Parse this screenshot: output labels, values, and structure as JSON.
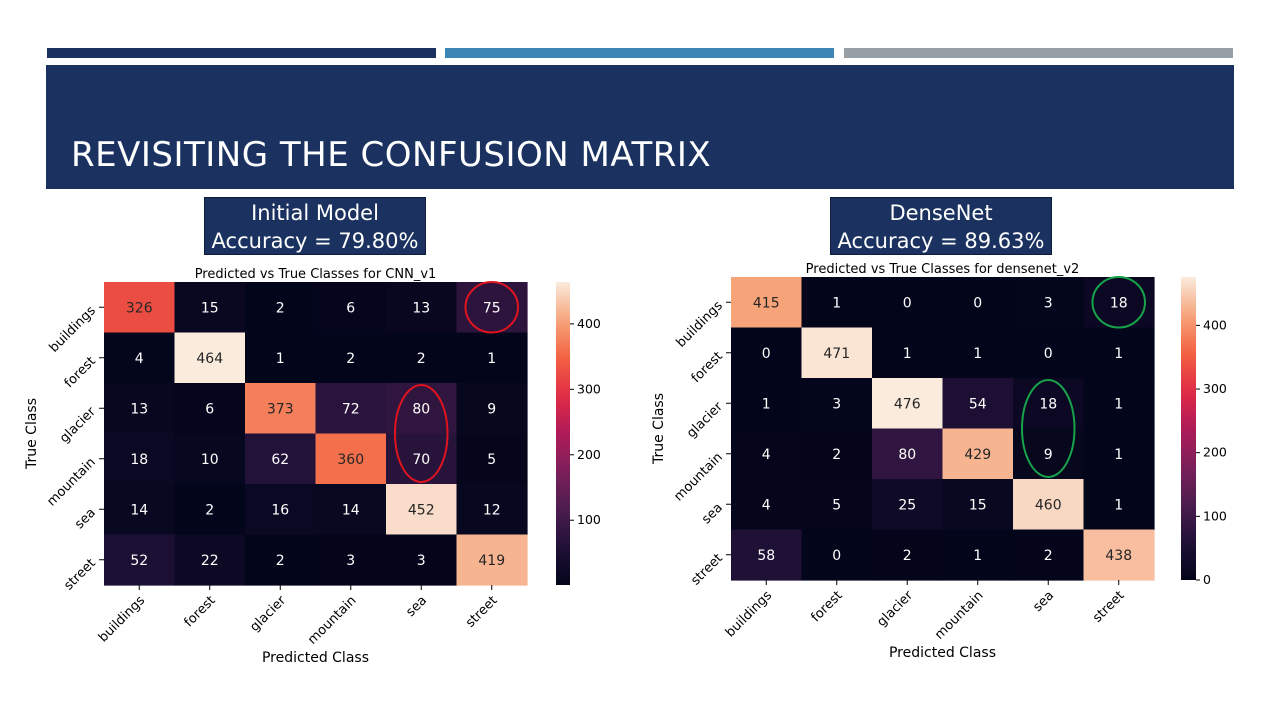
{
  "slide": {
    "title": "REVISITING THE CONFUSION MATRIX",
    "bar_colors": [
      "#1b3260",
      "#3c86b5",
      "#969ea6"
    ]
  },
  "models": [
    {
      "name": "Initial Model",
      "accuracy": "Accuracy = 79.80%"
    },
    {
      "name": "DenseNet",
      "accuracy": "Accuracy = 89.63%"
    }
  ],
  "chart_data": [
    {
      "type": "heatmap",
      "title": "Predicted vs True Classes for CNN_v1",
      "xlabel": "Predicted Class",
      "ylabel": "True Class",
      "x_categories": [
        "buildings",
        "forest",
        "glacier",
        "mountain",
        "sea",
        "street"
      ],
      "y_categories": [
        "buildings",
        "forest",
        "glacier",
        "mountain",
        "sea",
        "street"
      ],
      "values": [
        [
          326,
          15,
          2,
          6,
          13,
          75
        ],
        [
          4,
          464,
          1,
          2,
          2,
          1
        ],
        [
          13,
          6,
          373,
          72,
          80,
          9
        ],
        [
          18,
          10,
          62,
          360,
          70,
          5
        ],
        [
          14,
          2,
          16,
          14,
          452,
          12
        ],
        [
          52,
          22,
          2,
          3,
          3,
          419
        ]
      ],
      "colorbar": {
        "min": 1,
        "max": 464,
        "ticks": [
          100,
          200,
          300,
          400
        ]
      },
      "colormap": "rocket",
      "annotations": [
        {
          "shape": "ellipse",
          "color": "#e0141e",
          "cells": [
            [
              0,
              5
            ]
          ]
        },
        {
          "shape": "ellipse",
          "color": "#e0141e",
          "cells": [
            [
              2,
              4
            ],
            [
              3,
              4
            ]
          ]
        }
      ]
    },
    {
      "type": "heatmap",
      "title": "Predicted vs True Classes for densenet_v2",
      "xlabel": "Predicted Class",
      "ylabel": "True Class",
      "x_categories": [
        "buildings",
        "forest",
        "glacier",
        "mountain",
        "sea",
        "street"
      ],
      "y_categories": [
        "buildings",
        "forest",
        "glacier",
        "mountain",
        "sea",
        "street"
      ],
      "values": [
        [
          415,
          1,
          0,
          0,
          3,
          18
        ],
        [
          0,
          471,
          1,
          1,
          0,
          1
        ],
        [
          1,
          3,
          476,
          54,
          18,
          1
        ],
        [
          4,
          2,
          80,
          429,
          9,
          1
        ],
        [
          4,
          5,
          25,
          15,
          460,
          1
        ],
        [
          58,
          0,
          2,
          1,
          2,
          438
        ]
      ],
      "colorbar": {
        "min": 0,
        "max": 476,
        "ticks": [
          0,
          100,
          200,
          300,
          400
        ]
      },
      "colormap": "rocket",
      "annotations": [
        {
          "shape": "ellipse",
          "color": "#16a34a",
          "cells": [
            [
              0,
              5
            ]
          ]
        },
        {
          "shape": "ellipse",
          "color": "#16a34a",
          "cells": [
            [
              2,
              4
            ],
            [
              3,
              4
            ]
          ]
        }
      ]
    }
  ]
}
